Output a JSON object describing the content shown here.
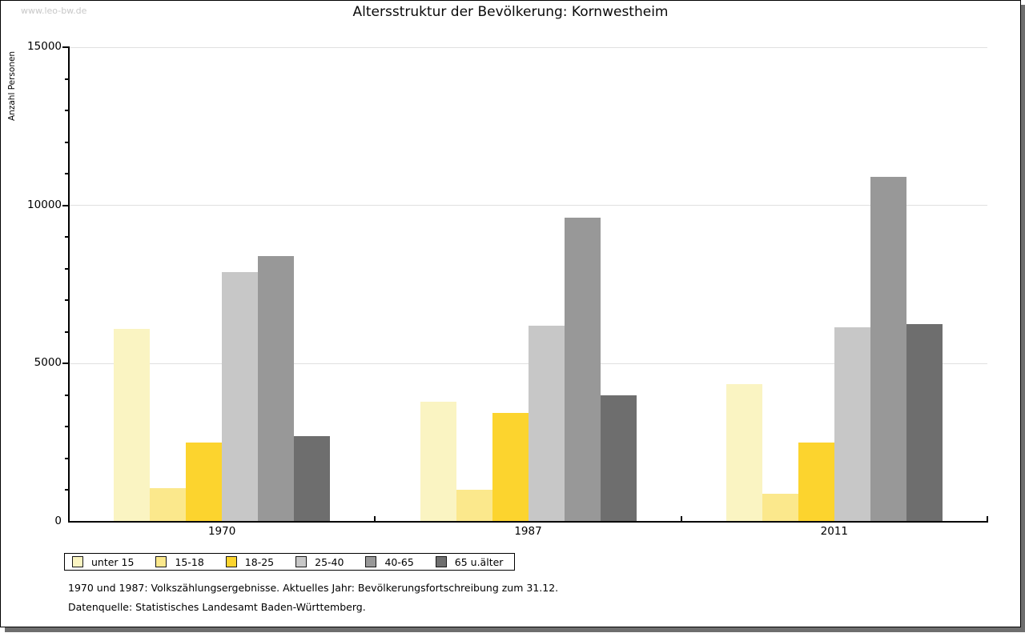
{
  "page": {
    "watermark": "www.leo-bw.de",
    "title": "Altersstruktur der Bevölkerung: Kornwestheim",
    "footnote_line1": "1970 und 1987: Volkszählungsergebnisse. Aktuelles Jahr: Bevölkerungsfortschreibung zum 31.12.",
    "footnote_line2": "Datenquelle: Statistisches Landesamt Baden-Württemberg."
  },
  "colors": {
    "axis": "#000000",
    "grid": "#e0e0e0",
    "watermark": "#c8c8c8",
    "frame_shadow": "#6e6e6e",
    "background": "#ffffff"
  },
  "chart_data": {
    "type": "bar",
    "title": "Altersstruktur der Bevölkerung: Kornwestheim",
    "xlabel": "",
    "ylabel": "Anzahl Personen",
    "categories": [
      "1970",
      "1987",
      "2011"
    ],
    "series": [
      {
        "name": "unter 15",
        "color": "#faf4c2",
        "values": [
          6100,
          3800,
          4350
        ]
      },
      {
        "name": "15-18",
        "color": "#fbe88c",
        "values": [
          1050,
          1000,
          880
        ]
      },
      {
        "name": "18-25",
        "color": "#fcd42e",
        "values": [
          2500,
          3450,
          2500
        ]
      },
      {
        "name": "25-40",
        "color": "#c7c7c7",
        "values": [
          7900,
          6200,
          6150
        ]
      },
      {
        "name": "40-65",
        "color": "#989898",
        "values": [
          8400,
          9600,
          10900
        ]
      },
      {
        "name": "65 u.älter",
        "color": "#6e6e6e",
        "values": [
          2700,
          4000,
          6250
        ]
      }
    ],
    "ylim": [
      0,
      15000
    ],
    "ytick_major": 5000,
    "ytick_minor": 1000,
    "y_tick_labels": [
      "0",
      "5000",
      "10000",
      "15000"
    ],
    "grid": "horizontal-major",
    "legend_position": "bottom-left"
  }
}
